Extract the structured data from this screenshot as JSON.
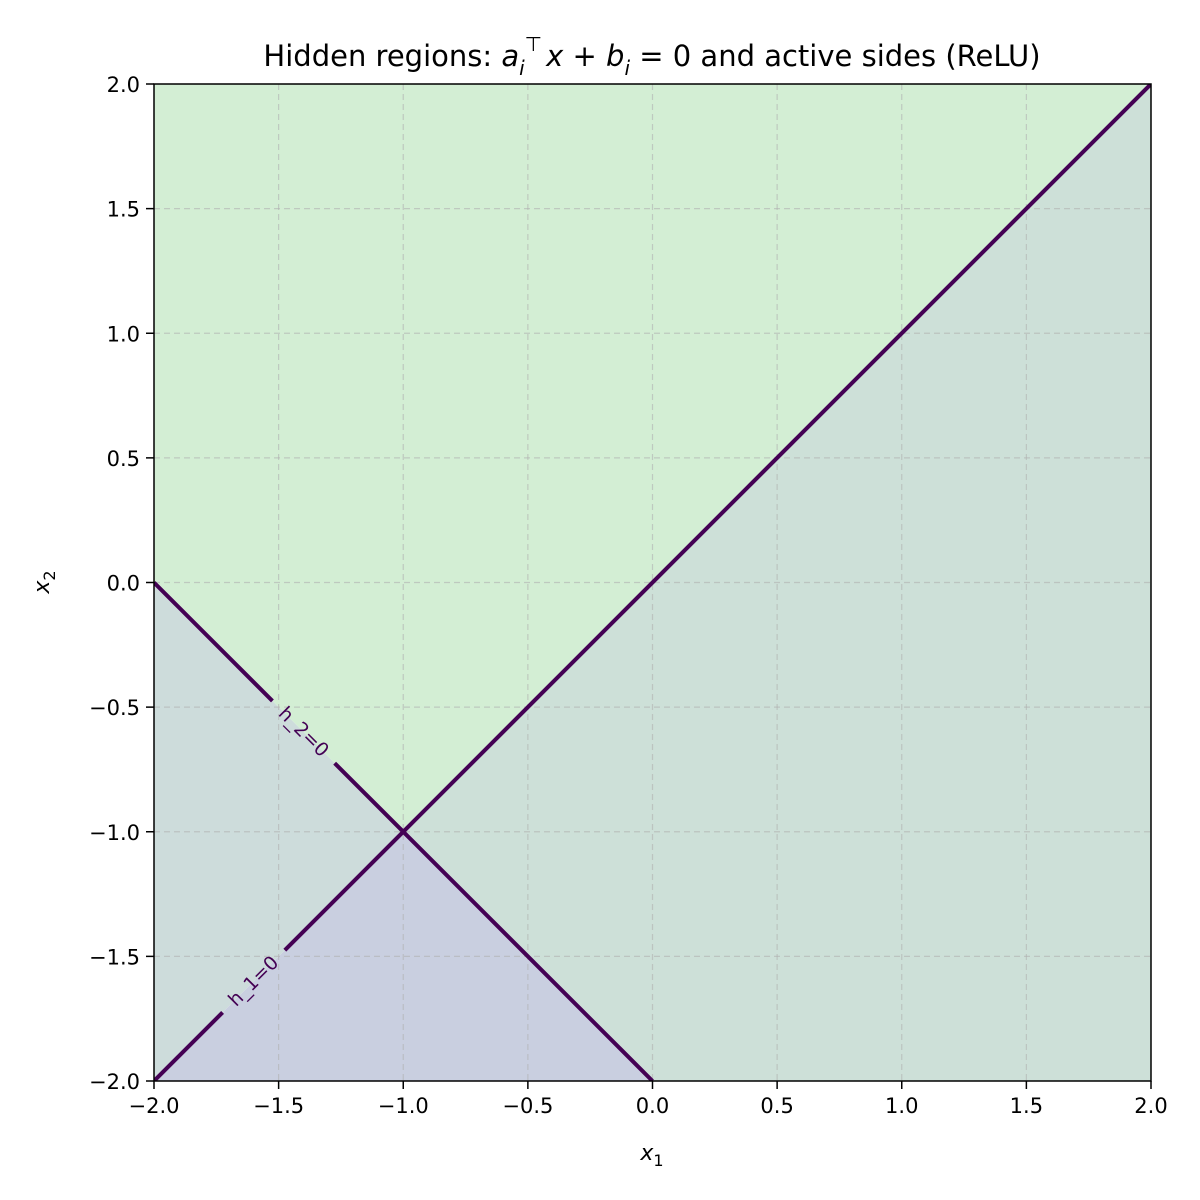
{
  "chart_data": {
    "type": "contour",
    "title": {
      "prefix": "Hidden regions: ",
      "a": "a",
      "sub_i": "i",
      "sup_T": "⊤",
      "x": "x",
      "plus": " + ",
      "b": "b",
      "eq": " = 0",
      "suffix": " and active sides (ReLU)"
    },
    "xlabel": {
      "var": "x",
      "sub": "1"
    },
    "ylabel": {
      "var": "x",
      "sub": "2"
    },
    "xlim": [
      -2.0,
      2.0
    ],
    "ylim": [
      -2.0,
      2.0
    ],
    "xticks": [
      -2.0,
      -1.5,
      -1.0,
      -0.5,
      0.0,
      0.5,
      1.0,
      1.5,
      2.0
    ],
    "yticks": [
      -2.0,
      -1.5,
      -1.0,
      -0.5,
      0.0,
      0.5,
      1.0,
      1.5,
      2.0
    ],
    "grid": true,
    "boundaries": [
      {
        "name": "h_1=0",
        "label": "h_1=0",
        "points": [
          [
            -2.0,
            -2.0
          ],
          [
            2.0,
            2.0
          ]
        ],
        "label_at": [
          -1.6,
          -1.6
        ]
      },
      {
        "name": "h_2=0",
        "label": "h_2=0",
        "points": [
          [
            -2.0,
            0.0
          ],
          [
            0.0,
            -2.0
          ]
        ],
        "label_at": [
          -1.4,
          -0.6
        ]
      }
    ],
    "regions": [
      {
        "name": "upper",
        "color": "#d3eed4",
        "polygon": [
          [
            -2.0,
            2.0
          ],
          [
            2.0,
            2.0
          ],
          [
            -1.0,
            -1.0
          ],
          [
            -2.0,
            0.0
          ]
        ]
      },
      {
        "name": "right",
        "color": "#cde0d8",
        "polygon": [
          [
            2.0,
            2.0
          ],
          [
            2.0,
            -2.0
          ],
          [
            0.0,
            -2.0
          ],
          [
            -1.0,
            -1.0
          ]
        ]
      },
      {
        "name": "left",
        "color": "#cddcdb",
        "polygon": [
          [
            -2.0,
            0.0
          ],
          [
            -1.0,
            -1.0
          ],
          [
            -2.0,
            -2.0
          ]
        ]
      },
      {
        "name": "bottom",
        "color": "#c9cfe0",
        "polygon": [
          [
            -2.0,
            -2.0
          ],
          [
            -1.0,
            -1.0
          ],
          [
            0.0,
            -2.0
          ]
        ]
      }
    ],
    "line_color": "#440154"
  }
}
